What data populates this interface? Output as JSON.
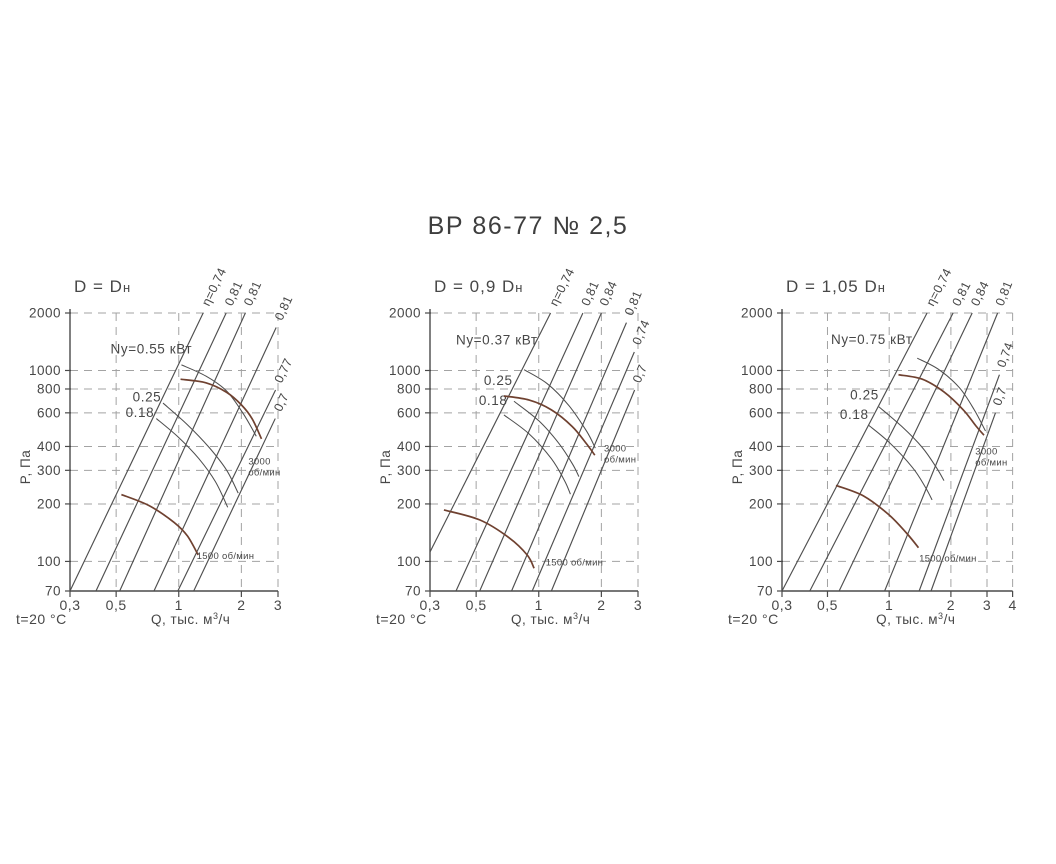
{
  "page": {
    "title": "ВР 86-77 № 2,5"
  },
  "colors": {
    "text": "#474747",
    "line": "#4f4f4f",
    "grid": "#a3a3a3",
    "axis": "#4a4a4a",
    "rpm_curve": "#6f4130"
  },
  "chart_data": [
    {
      "type": "line",
      "title": "D = Dн",
      "xlabel": "Q, тыс. м³/ч",
      "ylabel": "P, Па",
      "temp_note": "t=20 °C",
      "xlim": [
        0.3,
        3
      ],
      "ylim": [
        70,
        2000
      ],
      "x_ticks": [
        {
          "v": 0.3,
          "label": "0,3"
        },
        {
          "v": 0.5,
          "label": "0,5"
        },
        {
          "v": 1,
          "label": "1"
        },
        {
          "v": 2,
          "label": "2"
        },
        {
          "v": 3,
          "label": "3"
        }
      ],
      "y_ticks": [
        {
          "v": 2000,
          "label": "2000"
        },
        {
          "v": 1000,
          "label": "1000"
        },
        {
          "v": 800,
          "label": "800"
        },
        {
          "v": 600,
          "label": "600"
        },
        {
          "v": 400,
          "label": "400"
        },
        {
          "v": 300,
          "label": "300"
        },
        {
          "v": 200,
          "label": "200"
        },
        {
          "v": 100,
          "label": "100"
        },
        {
          "v": 70,
          "label": "70"
        }
      ],
      "grid_x": [
        0.5,
        1,
        2,
        3
      ],
      "grid_y": [
        100,
        200,
        300,
        400,
        600,
        800,
        1000,
        2000
      ],
      "efficiency_lines": [
        {
          "label": "η=0,74",
          "from": [
            0.3,
            70
          ],
          "to": [
            1.31,
            2000
          ]
        },
        {
          "label": "0,81",
          "from": [
            0.4,
            70
          ],
          "to": [
            1.69,
            2000
          ]
        },
        {
          "label": "0,81",
          "from": [
            0.52,
            70
          ],
          "to": [
            2.09,
            2000
          ]
        },
        {
          "label": "0,81",
          "from": [
            0.76,
            70
          ],
          "to": [
            2.94,
            1680
          ]
        },
        {
          "label": "0,77",
          "from": [
            0.99,
            70
          ],
          "to": [
            2.92,
            790
          ]
        },
        {
          "label": "0,7",
          "from": [
            1.18,
            70
          ],
          "to": [
            2.91,
            560
          ]
        }
      ],
      "rpm_curves": [
        {
          "label_lines": [
            "3000",
            "об/мин"
          ],
          "label_at": [
            2.16,
            322
          ],
          "points": [
            [
              1.02,
              900
            ],
            [
              1.35,
              862
            ],
            [
              1.7,
              768
            ],
            [
              2.0,
              660
            ],
            [
              2.25,
              560
            ],
            [
              2.5,
              438
            ]
          ]
        },
        {
          "label_lines": [
            "1500 об/мин"
          ],
          "label_at": [
            1.22,
            103
          ],
          "points": [
            [
              0.53,
              224
            ],
            [
              0.72,
              196
            ],
            [
              0.95,
              160
            ],
            [
              1.1,
              136
            ],
            [
              1.24,
              108
            ]
          ]
        }
      ],
      "power_curves": [
        {
          "label": "Ny=0.55 кВт",
          "label_at": [
            0.47,
            1230
          ],
          "points": [
            [
              1.03,
              1070
            ],
            [
              1.35,
              935
            ],
            [
              1.7,
              780
            ],
            [
              2.05,
              590
            ],
            [
              2.36,
              452
            ]
          ]
        },
        {
          "label": "0.25",
          "label_at": [
            0.6,
            688
          ],
          "points": [
            [
              0.84,
              675
            ],
            [
              1.1,
              520
            ],
            [
              1.4,
              395
            ],
            [
              1.7,
              300
            ],
            [
              1.93,
              228
            ]
          ]
        },
        {
          "label": "0.18",
          "label_at": [
            0.555,
            572
          ],
          "points": [
            [
              0.78,
              560
            ],
            [
              1.0,
              445
            ],
            [
              1.25,
              345
            ],
            [
              1.5,
              262
            ],
            [
              1.72,
              192
            ]
          ]
        }
      ]
    },
    {
      "type": "line",
      "title": "D = 0,9 Dн",
      "xlabel": "Q, тыс. м³/ч",
      "ylabel": "P, Па",
      "temp_note": "t=20 °C",
      "xlim": [
        0.3,
        3
      ],
      "ylim": [
        70,
        2000
      ],
      "x_ticks": [
        {
          "v": 0.3,
          "label": "0,3"
        },
        {
          "v": 0.5,
          "label": "0,5"
        },
        {
          "v": 1,
          "label": "1"
        },
        {
          "v": 2,
          "label": "2"
        },
        {
          "v": 3,
          "label": "3"
        }
      ],
      "y_ticks": [
        {
          "v": 2000,
          "label": "2000"
        },
        {
          "v": 1000,
          "label": "1000"
        },
        {
          "v": 800,
          "label": "800"
        },
        {
          "v": 600,
          "label": "600"
        },
        {
          "v": 400,
          "label": "400"
        },
        {
          "v": 300,
          "label": "300"
        },
        {
          "v": 200,
          "label": "200"
        },
        {
          "v": 100,
          "label": "100"
        },
        {
          "v": 70,
          "label": "70"
        }
      ],
      "grid_x": [
        0.5,
        1,
        2,
        3
      ],
      "grid_y": [
        100,
        200,
        300,
        400,
        600,
        800,
        1000,
        2000
      ],
      "efficiency_lines": [
        {
          "label": "η=0,74",
          "from": [
            0.3,
            112
          ],
          "to": [
            1.14,
            2000
          ]
        },
        {
          "label": "0,81",
          "from": [
            0.4,
            70
          ],
          "to": [
            1.63,
            2000
          ]
        },
        {
          "label": "0,84",
          "from": [
            0.52,
            70
          ],
          "to": [
            2.0,
            2000
          ]
        },
        {
          "label": "0,81",
          "from": [
            0.74,
            70
          ],
          "to": [
            2.64,
            1780
          ]
        },
        {
          "label": "0,74",
          "from": [
            0.93,
            70
          ],
          "to": [
            2.88,
            1250
          ]
        },
        {
          "label": "0,7",
          "from": [
            1.15,
            70
          ],
          "to": [
            2.89,
            790
          ]
        }
      ],
      "rpm_curves": [
        {
          "label_lines": [
            "3000",
            "об/мин"
          ],
          "label_at": [
            2.06,
            376
          ],
          "points": [
            [
              0.68,
              735
            ],
            [
              0.9,
              700
            ],
            [
              1.15,
              622
            ],
            [
              1.45,
              508
            ],
            [
              1.7,
              412
            ],
            [
              1.86,
              360
            ]
          ]
        },
        {
          "label_lines": [
            "1500 об/мин"
          ],
          "label_at": [
            1.08,
            95
          ],
          "points": [
            [
              0.35,
              186
            ],
            [
              0.52,
              165
            ],
            [
              0.72,
              133
            ],
            [
              0.88,
              108
            ],
            [
              0.95,
              92
            ]
          ]
        }
      ],
      "power_curves": [
        {
          "label": "Ny=0.37 кВт",
          "label_at": [
            0.4,
            1370
          ],
          "points": [
            [
              0.85,
              1010
            ],
            [
              1.1,
              852
            ],
            [
              1.4,
              652
            ],
            [
              1.7,
              480
            ],
            [
              1.87,
              392
            ]
          ]
        },
        {
          "label": "0.25",
          "label_at": [
            0.545,
            838
          ],
          "points": [
            [
              0.76,
              690
            ],
            [
              1.0,
              545
            ],
            [
              1.25,
              415
            ],
            [
              1.45,
              325
            ],
            [
              1.56,
              278
            ]
          ]
        },
        {
          "label": "0.18",
          "label_at": [
            0.515,
            658
          ],
          "points": [
            [
              0.68,
              585
            ],
            [
              0.9,
              465
            ],
            [
              1.15,
              345
            ],
            [
              1.33,
              265
            ],
            [
              1.42,
              225
            ]
          ]
        }
      ]
    },
    {
      "type": "line",
      "title": "D = 1,05 Dн",
      "xlabel": "Q, тыс. м³/ч",
      "ylabel": "P, Па",
      "temp_note": "t=20 °C",
      "xlim": [
        0.3,
        4
      ],
      "ylim": [
        70,
        2000
      ],
      "x_ticks": [
        {
          "v": 0.3,
          "label": "0,3"
        },
        {
          "v": 0.5,
          "label": "0,5"
        },
        {
          "v": 1,
          "label": "1"
        },
        {
          "v": 2,
          "label": "2"
        },
        {
          "v": 3,
          "label": "3"
        },
        {
          "v": 4,
          "label": "4"
        }
      ],
      "y_ticks": [
        {
          "v": 2000,
          "label": "2000"
        },
        {
          "v": 1000,
          "label": "1000"
        },
        {
          "v": 800,
          "label": "800"
        },
        {
          "v": 600,
          "label": "600"
        },
        {
          "v": 400,
          "label": "400"
        },
        {
          "v": 300,
          "label": "300"
        },
        {
          "v": 200,
          "label": "200"
        },
        {
          "v": 100,
          "label": "100"
        },
        {
          "v": 70,
          "label": "70"
        }
      ],
      "grid_x": [
        0.5,
        1,
        2,
        3,
        4
      ],
      "grid_y": [
        100,
        200,
        300,
        400,
        600,
        800,
        1000,
        2000
      ],
      "efficiency_lines": [
        {
          "label": "η=0,74",
          "from": [
            0.3,
            70
          ],
          "to": [
            1.53,
            2000
          ]
        },
        {
          "label": "0,81",
          "from": [
            0.41,
            70
          ],
          "to": [
            2.05,
            2000
          ]
        },
        {
          "label": "0,84",
          "from": [
            0.57,
            70
          ],
          "to": [
            2.54,
            2000
          ]
        },
        {
          "label": "0,81",
          "from": [
            0.95,
            70
          ],
          "to": [
            3.38,
            2000
          ]
        },
        {
          "label": "0,74",
          "from": [
            1.4,
            70
          ],
          "to": [
            3.45,
            950
          ]
        },
        {
          "label": "0,7",
          "from": [
            1.6,
            70
          ],
          "to": [
            3.3,
            600
          ]
        }
      ],
      "rpm_curves": [
        {
          "label_lines": [
            "3000",
            "об/мин"
          ],
          "label_at": [
            2.63,
            362
          ],
          "points": [
            [
              1.11,
              950
            ],
            [
              1.45,
              900
            ],
            [
              1.85,
              772
            ],
            [
              2.3,
              622
            ],
            [
              2.65,
              512
            ],
            [
              2.9,
              458
            ]
          ]
        },
        {
          "label_lines": [
            "1500 об/мин"
          ],
          "label_at": [
            1.4,
            100
          ],
          "points": [
            [
              0.55,
              250
            ],
            [
              0.75,
              220
            ],
            [
              1.0,
              175
            ],
            [
              1.22,
              140
            ],
            [
              1.39,
              118
            ]
          ]
        }
      ],
      "power_curves": [
        {
          "label": "Ny=0.75 кВт",
          "label_at": [
            0.52,
            1380
          ],
          "points": [
            [
              1.37,
              1160
            ],
            [
              1.75,
              1010
            ],
            [
              2.2,
              812
            ],
            [
              2.6,
              622
            ],
            [
              2.95,
              482
            ]
          ]
        },
        {
          "label": "0.25",
          "label_at": [
            0.645,
            705
          ],
          "points": [
            [
              0.89,
              646
            ],
            [
              1.15,
              510
            ],
            [
              1.45,
              395
            ],
            [
              1.7,
              310
            ],
            [
              1.85,
              265
            ]
          ]
        },
        {
          "label": "0.18",
          "label_at": [
            0.575,
            556
          ],
          "points": [
            [
              0.79,
              519
            ],
            [
              1.0,
              420
            ],
            [
              1.3,
              310
            ],
            [
              1.5,
              245
            ],
            [
              1.62,
              210
            ]
          ]
        }
      ]
    }
  ]
}
